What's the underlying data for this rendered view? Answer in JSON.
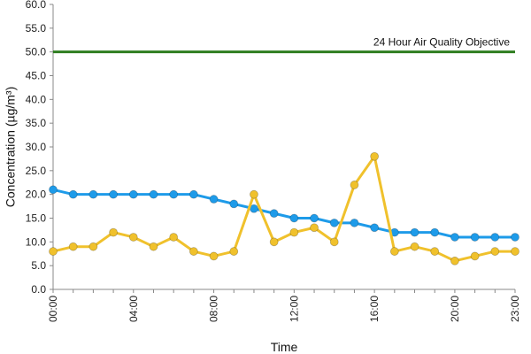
{
  "chart_data": {
    "type": "line",
    "xlabel": "Time",
    "ylabel": "Concentration (µg/m³)",
    "ylim": [
      0,
      60
    ],
    "y_ticks": [
      "0.0",
      "5.0",
      "10.0",
      "15.0",
      "20.0",
      "25.0",
      "30.0",
      "35.0",
      "40.0",
      "45.0",
      "50.0",
      "55.0",
      "60.0"
    ],
    "x_hours": [
      0,
      1,
      2,
      3,
      4,
      5,
      6,
      7,
      8,
      9,
      10,
      11,
      12,
      13,
      14,
      15,
      16,
      17,
      18,
      19,
      20,
      21,
      22,
      23
    ],
    "x_tick_labels": [
      {
        "hour": 0,
        "label": "00:00"
      },
      {
        "hour": 4,
        "label": "04:00"
      },
      {
        "hour": 8,
        "label": "08:00"
      },
      {
        "hour": 12,
        "label": "12:00"
      },
      {
        "hour": 16,
        "label": "16:00"
      },
      {
        "hour": 20,
        "label": "20:00"
      },
      {
        "hour": 23,
        "label": "23:00"
      }
    ],
    "grid": false,
    "objective": {
      "label": "24 Hour Air Quality Objective",
      "value": 50,
      "color": "#2e7d1f"
    },
    "series": [
      {
        "color": "#1e9be9",
        "values": [
          21,
          20,
          20,
          20,
          20,
          20,
          20,
          20,
          19,
          18,
          17,
          16,
          15,
          15,
          14,
          14,
          13,
          12,
          12,
          12,
          11,
          11,
          11,
          11
        ]
      },
      {
        "color": "#f0c12c",
        "values": [
          8,
          9,
          9,
          12,
          11,
          9,
          11,
          8,
          7,
          8,
          20,
          10,
          12,
          13,
          10,
          22,
          28,
          8,
          9,
          8,
          6,
          7,
          8,
          8
        ]
      }
    ]
  }
}
